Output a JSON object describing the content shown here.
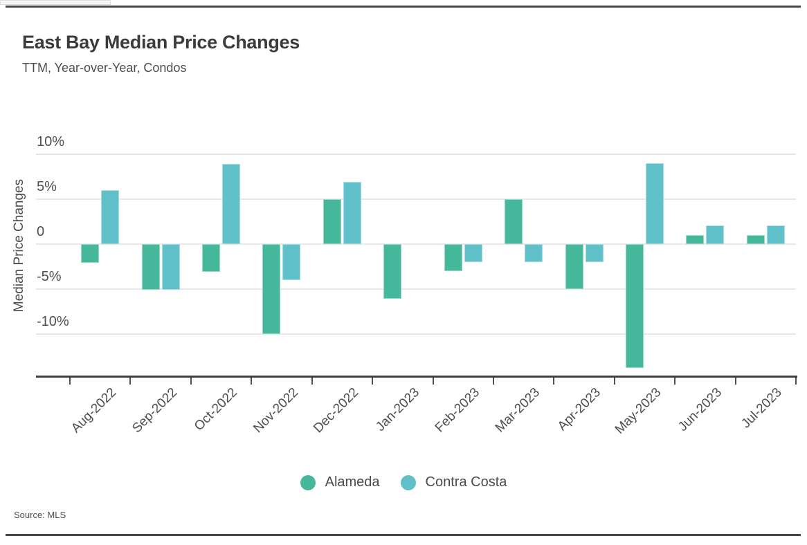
{
  "page": {
    "title": "East Bay Median Price Changes",
    "subtitle": "TTM, Year-over-Year, Condos",
    "source": "Source: MLS"
  },
  "chart_data": {
    "type": "bar",
    "title": "East Bay Median Price Changes",
    "subtitle": "TTM, Year-over-Year, Condos",
    "xlabel": "",
    "ylabel": "Median Price Changes",
    "source": "Source: MLS",
    "grid": true,
    "legend_position": "bottom",
    "categories": [
      "Aug-2022",
      "Sep-2022",
      "Oct-2022",
      "Nov-2022",
      "Dec-2022",
      "Jan-2023",
      "Feb-2023",
      "Mar-2023",
      "Apr-2023",
      "May-2023",
      "Jun-2023",
      "Jul-2023"
    ],
    "series": [
      {
        "name": "Alameda",
        "color": "#45b79a",
        "values": [
          -2.1,
          -5.1,
          -3.1,
          -10.0,
          5.0,
          -6.1,
          -3.0,
          5.0,
          -5.0,
          -13.8,
          1.0,
          1.0
        ]
      },
      {
        "name": "Contra Costa",
        "color": "#5fc0c9",
        "values": [
          6.0,
          -5.1,
          8.9,
          -4.0,
          6.9,
          0.0,
          -2.0,
          -2.0,
          -2.0,
          9.0,
          2.1,
          2.1
        ]
      }
    ],
    "yticks": [
      {
        "value": 10,
        "label": "10%"
      },
      {
        "value": 5,
        "label": "5%"
      },
      {
        "value": 0,
        "label": "0"
      },
      {
        "value": -5,
        "label": "-5%"
      },
      {
        "value": -10,
        "label": "-10%"
      }
    ],
    "ylim": [
      -14.6,
      12.2
    ],
    "unit": "%"
  }
}
